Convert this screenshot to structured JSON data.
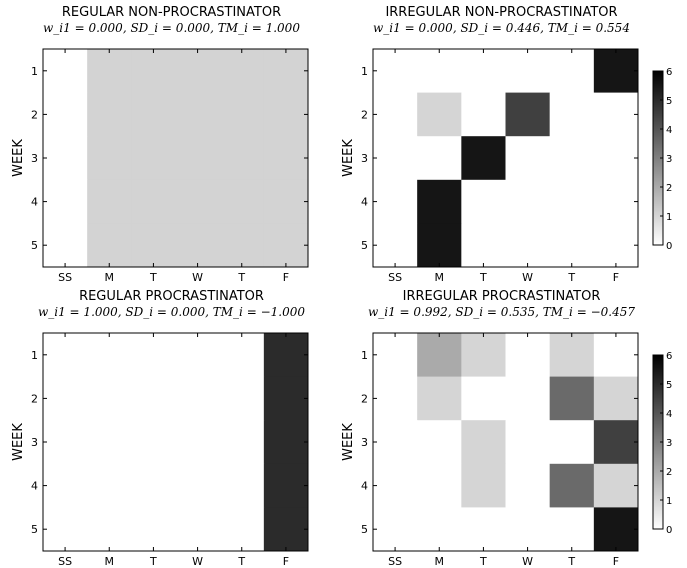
{
  "chart_data": [
    {
      "type": "heatmap",
      "title": "REGULAR NON-PROCRASTINATOR",
      "subtitle": "w_i1 = 0.000, SD_i = 0.000, TM_i = 1.000",
      "ylabel": "WEEK",
      "x_categories": [
        "SS",
        "M",
        "T",
        "W",
        "T",
        "F"
      ],
      "y_categories": [
        "1",
        "2",
        "3",
        "4",
        "5"
      ],
      "values": [
        [
          0,
          1,
          1,
          1,
          1,
          1
        ],
        [
          0,
          1,
          1,
          1,
          1,
          1
        ],
        [
          0,
          1,
          1,
          1,
          1,
          1
        ],
        [
          0,
          1,
          1,
          1,
          1,
          1
        ],
        [
          0,
          1,
          1,
          1,
          1,
          1
        ]
      ],
      "colorbar": false
    },
    {
      "type": "heatmap",
      "title": "IRREGULAR NON-PROCRASTINATOR",
      "subtitle": "w_i1 = 0.000, SD_i = 0.446, TM_i = 0.554",
      "ylabel": "WEEK",
      "x_categories": [
        "SS",
        "M",
        "T",
        "W",
        "T",
        "F"
      ],
      "y_categories": [
        "1",
        "2",
        "3",
        "4",
        "5"
      ],
      "values": [
        [
          0,
          0,
          0,
          0,
          0,
          5.5
        ],
        [
          0,
          1,
          0,
          4.5,
          0,
          0
        ],
        [
          0,
          0,
          5.5,
          0,
          0,
          0
        ],
        [
          0,
          5.5,
          0,
          0,
          0,
          0
        ],
        [
          0,
          5.5,
          0,
          0,
          0,
          0
        ]
      ],
      "colorbar": true,
      "colorbar_range": [
        0,
        6
      ],
      "colorbar_ticks": [
        "0",
        "1",
        "2",
        "3",
        "4",
        "5",
        "6"
      ]
    },
    {
      "type": "heatmap",
      "title": "REGULAR PROCRASTINATOR",
      "subtitle": "w_i1 = 1.000, SD_i = 0.000, TM_i = −1.000",
      "ylabel": "WEEK",
      "x_categories": [
        "SS",
        "M",
        "T",
        "W",
        "T",
        "F"
      ],
      "y_categories": [
        "1",
        "2",
        "3",
        "4",
        "5"
      ],
      "values": [
        [
          0,
          0,
          0,
          0,
          0,
          1
        ],
        [
          0,
          0,
          0,
          0,
          0,
          1
        ],
        [
          0,
          0,
          0,
          0,
          0,
          1
        ],
        [
          0,
          0,
          0,
          0,
          0,
          1
        ],
        [
          0,
          0,
          0,
          0,
          0,
          1
        ]
      ],
      "colorbar": false
    },
    {
      "type": "heatmap",
      "title": "IRREGULAR PROCRASTINATOR",
      "subtitle": "w_i1 = 0.992, SD_i = 0.535, TM_i = −0.457",
      "ylabel": "WEEK",
      "x_categories": [
        "SS",
        "M",
        "T",
        "W",
        "T",
        "F"
      ],
      "y_categories": [
        "1",
        "2",
        "3",
        "4",
        "5"
      ],
      "values": [
        [
          0,
          2,
          1,
          0,
          1,
          0
        ],
        [
          0,
          1,
          0,
          0,
          3.5,
          1
        ],
        [
          0,
          0,
          1,
          0,
          0,
          4.5
        ],
        [
          0,
          0,
          1,
          0,
          3.5,
          1
        ],
        [
          0,
          0,
          0,
          0,
          0,
          5.5
        ]
      ],
      "colorbar": true,
      "colorbar_range": [
        0,
        6
      ],
      "colorbar_ticks": [
        "0",
        "1",
        "2",
        "3",
        "4",
        "5",
        "6"
      ]
    }
  ]
}
